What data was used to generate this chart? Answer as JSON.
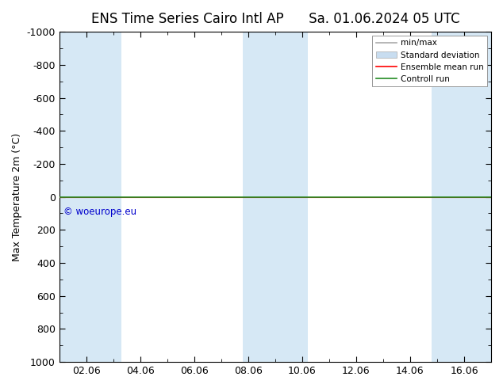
{
  "title_left": "ENS Time Series Cairo Intl AP",
  "title_right": "Sa. 01.06.2024 05 UTC",
  "ylabel": "Max Temperature 2m (°C)",
  "ylim_bottom": 1000,
  "ylim_top": -1000,
  "yticks": [
    -1000,
    -800,
    -600,
    -400,
    -200,
    0,
    200,
    400,
    600,
    800,
    1000
  ],
  "x_tick_labels": [
    "02.06",
    "04.06",
    "06.06",
    "08.06",
    "10.06",
    "12.06",
    "14.06",
    "16.06"
  ],
  "x_tick_positions": [
    2,
    4,
    6,
    8,
    10,
    12,
    14,
    16
  ],
  "xlim": [
    1,
    17
  ],
  "shaded_regions": [
    {
      "xmin": 1.0,
      "xmax": 2.0
    },
    {
      "xmin": 2.0,
      "xmax": 3.3
    },
    {
      "xmin": 7.8,
      "xmax": 9.0
    },
    {
      "xmin": 9.0,
      "xmax": 10.2
    },
    {
      "xmin": 14.8,
      "xmax": 17.0
    }
  ],
  "shaded_color": "#d6e8f5",
  "mean_run_y": 0,
  "control_run_y": 0,
  "mean_run_color": "#ff0000",
  "control_run_color": "#228B22",
  "legend_labels": [
    "min/max",
    "Standard deviation",
    "Ensemble mean run",
    "Controll run"
  ],
  "copyright_text": "© woeurope.eu",
  "copyright_color": "#0000cc",
  "background_color": "#ffffff",
  "title_fontsize": 12,
  "axis_fontsize": 9,
  "tick_fontsize": 9
}
